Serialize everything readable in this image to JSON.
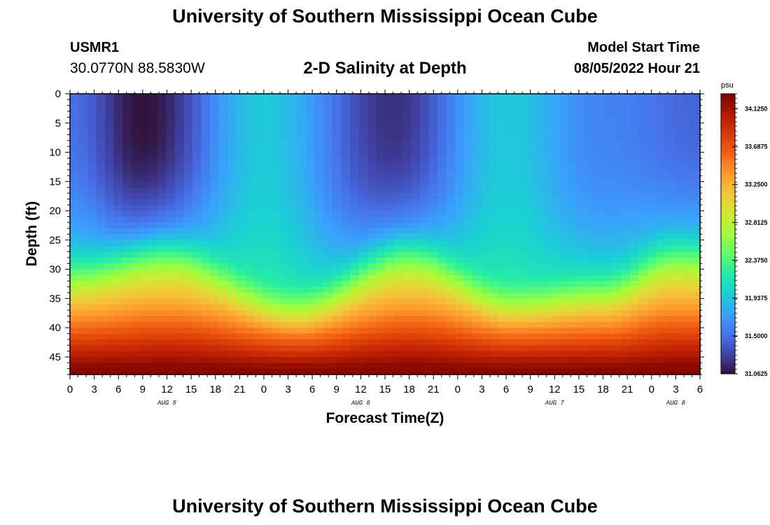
{
  "header": {
    "title": "University of Southern Mississippi Ocean Cube",
    "station_id": "USMR1",
    "coordinates": "30.0770N  88.5830W",
    "plot_title": "2-D Salinity at Depth",
    "model_start_label": "Model Start Time",
    "model_start_value": "08/05/2022 Hour 21"
  },
  "footer": {
    "title": "University of Southern Mississippi Ocean Cube"
  },
  "chart_data": {
    "type": "heatmap",
    "title": "2-D Salinity at Depth",
    "xlabel": "Forecast Time(Z)",
    "ylabel": "Depth (ft)",
    "x_ticks": [
      "0",
      "3",
      "6",
      "9",
      "12",
      "15",
      "18",
      "21",
      "0",
      "3",
      "6",
      "9",
      "12",
      "15",
      "18",
      "21",
      "0",
      "3",
      "6",
      "9",
      "12",
      "15",
      "18",
      "21",
      "0",
      "3",
      "6"
    ],
    "x_range_hours": [
      0,
      78
    ],
    "date_labels": [
      {
        "text": "AUG 5",
        "hour": 12
      },
      {
        "text": "AUG 6",
        "hour": 36
      },
      {
        "text": "AUG 7",
        "hour": 60
      },
      {
        "text": "AUG 8",
        "hour": 75
      }
    ],
    "y_ticks": [
      "0",
      "5",
      "10",
      "15",
      "20",
      "25",
      "30",
      "35",
      "40",
      "45"
    ],
    "y_range_ft": [
      0,
      48
    ],
    "y_inverted": true,
    "colorbar": {
      "unit": "psu",
      "min": 31.0625,
      "max": 34.3,
      "labels": [
        "34.1250",
        "33.6875",
        "33.2500",
        "32.8125",
        "32.3750",
        "31.9375",
        "31.5000",
        "31.0625"
      ],
      "colormap": [
        "#30123b",
        "#4145ab",
        "#4675ed",
        "#39a2fc",
        "#1bcfd4",
        "#24eca6",
        "#61fc6c",
        "#a4fc3b",
        "#d1e834",
        "#f3c63a",
        "#fe9b2d",
        "#f36315",
        "#d93806",
        "#b11901",
        "#7a0402"
      ]
    },
    "grid": false,
    "surface_salinity_psu_by_hour": [
      {
        "hour": 0,
        "value": 31.5
      },
      {
        "hour": 9,
        "value": 31.06
      },
      {
        "hour": 24,
        "value": 31.95
      },
      {
        "hour": 40,
        "value": 31.2
      },
      {
        "hour": 54,
        "value": 31.95
      },
      {
        "hour": 66,
        "value": 31.6
      },
      {
        "hour": 78,
        "value": 31.45
      }
    ],
    "bottom_salinity_psu": 34.25,
    "halocline_depth_ft_by_hour": [
      {
        "hour": 0,
        "value": 29
      },
      {
        "hour": 12,
        "value": 26
      },
      {
        "hour": 28,
        "value": 34
      },
      {
        "hour": 42,
        "value": 26
      },
      {
        "hour": 55,
        "value": 33
      },
      {
        "hour": 66,
        "value": 31.5
      },
      {
        "hour": 75,
        "value": 26
      }
    ]
  }
}
